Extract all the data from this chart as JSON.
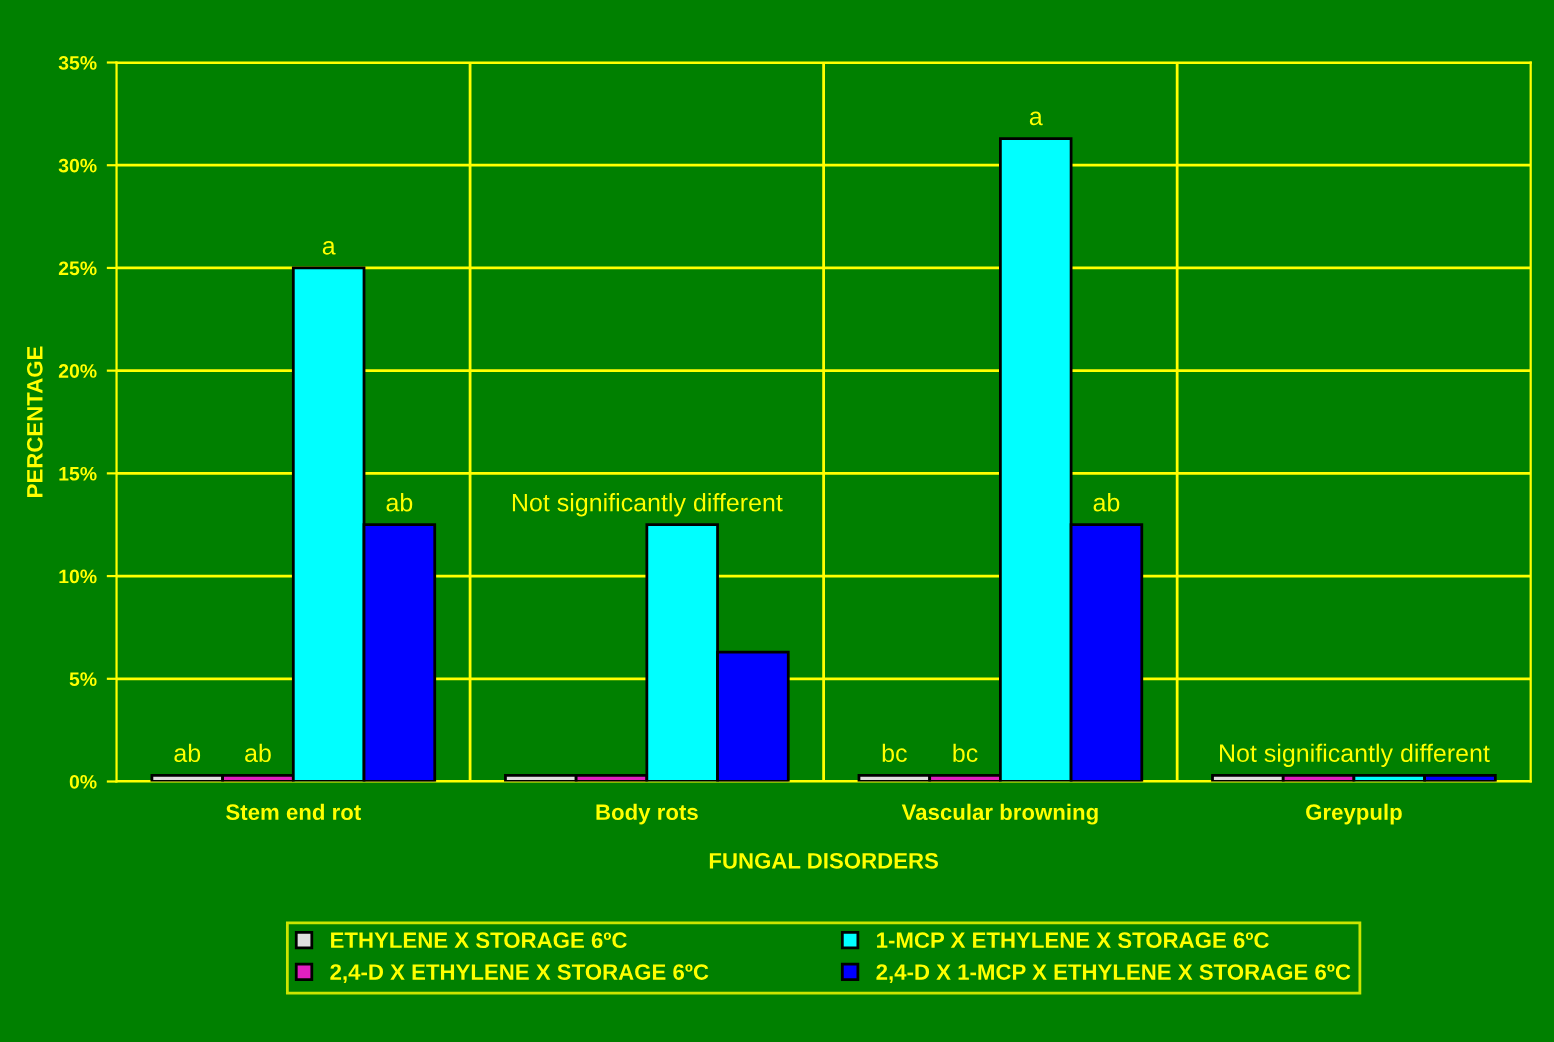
{
  "chart_data": {
    "type": "bar",
    "xlabel": "FUNGAL DISORDERS",
    "ylabel": "PERCENTAGE",
    "categories": [
      "Stem end rot",
      "Body rots",
      "Vascular browning",
      "Greypulp"
    ],
    "series": [
      {
        "name": "ETHYLENE X STORAGE 6ºC",
        "color": "#e0e0e0",
        "values": [
          0.3,
          0.3,
          0.3,
          0.3
        ],
        "value_labels": [
          "ab",
          null,
          "bc",
          null
        ]
      },
      {
        "name": "2,4-D X ETHYLENE X STORAGE 6ºC",
        "color": "#e020c0",
        "values": [
          0.3,
          0.3,
          0.3,
          0.3
        ],
        "value_labels": [
          "ab",
          null,
          "bc",
          null
        ]
      },
      {
        "name": "1-MCP X ETHYLENE X STORAGE 6ºC",
        "color": "#00ffff",
        "values": [
          25,
          12.5,
          31.3,
          0.3
        ],
        "value_labels": [
          "a",
          null,
          "a",
          null
        ]
      },
      {
        "name": "2,4-D X 1-MCP X ETHYLENE X STORAGE 6ºC",
        "color": "#0000ff",
        "values": [
          12.5,
          6.3,
          12.5,
          0.3
        ],
        "value_labels": [
          "ab",
          null,
          "ab",
          null
        ]
      }
    ],
    "annotations": [
      "Not significantly different",
      "Not significantly different"
    ],
    "ylim": [
      0,
      35
    ],
    "yticks": [
      {
        "value": 0,
        "label": "0%"
      },
      {
        "value": 5,
        "label": "5%"
      },
      {
        "value": 10,
        "label": "10%"
      },
      {
        "value": 15,
        "label": "15%"
      },
      {
        "value": 20,
        "label": "20%"
      },
      {
        "value": 25,
        "label": "25%"
      },
      {
        "value": 30,
        "label": "30%"
      },
      {
        "value": 35,
        "label": "35%"
      }
    ],
    "grid": true,
    "legend": "bottom"
  }
}
